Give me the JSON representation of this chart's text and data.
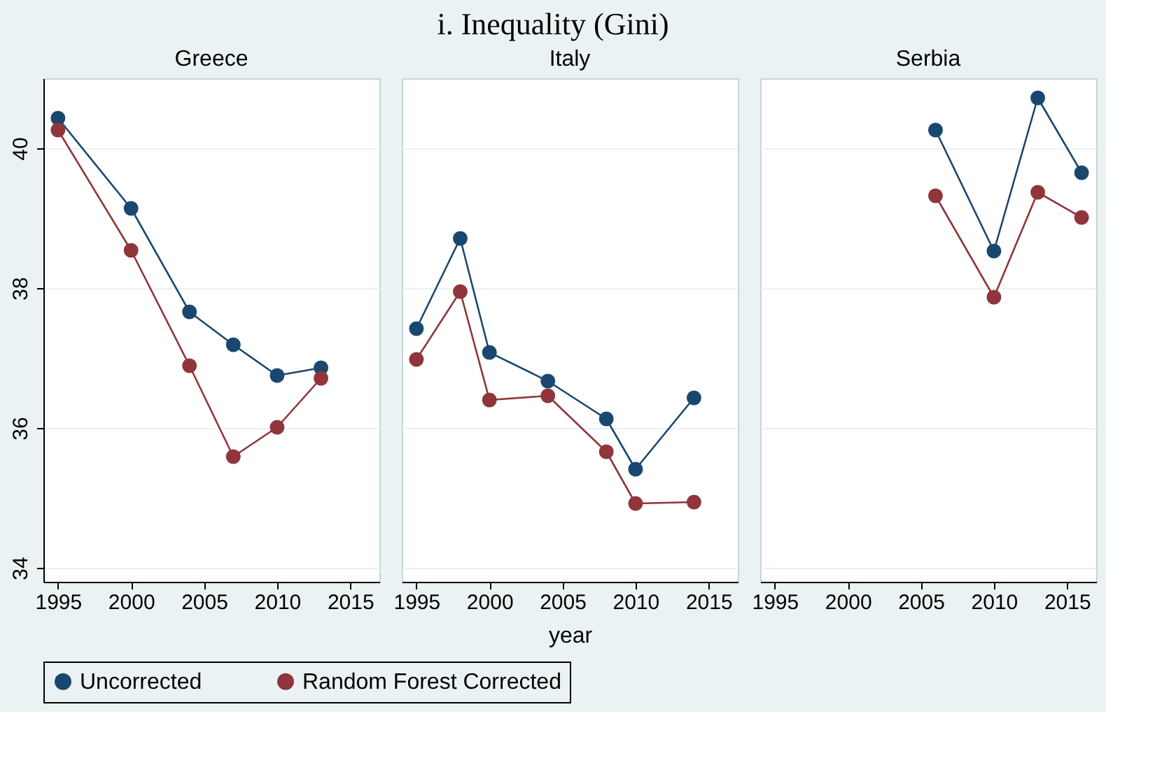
{
  "chart_data": [
    {
      "type": "line",
      "title": "Greece",
      "legend": "bottom",
      "annotations": [
        "i. Inequality (Gini)"
      ],
      "xlim": [
        1994,
        2017
      ],
      "xticks": [
        1995,
        2000,
        2005,
        2010,
        2015
      ],
      "ylim": [
        33.8,
        41
      ],
      "yticks": [
        34,
        36,
        38,
        40
      ],
      "grid": "y",
      "marker": "circle",
      "line_style": "solid",
      "series": [
        {
          "name": "Uncorrected",
          "color": "#1a476f",
          "x": [
            1995,
            2000,
            2004,
            2007,
            2010,
            2013
          ],
          "values": [
            40.43,
            39.14,
            37.66,
            37.19,
            36.75,
            36.86
          ]
        },
        {
          "name": "Random Forest Corrected",
          "color": "#90353b",
          "x": [
            1995,
            2000,
            2004,
            2007,
            2010,
            2013
          ],
          "values": [
            40.26,
            38.54,
            36.89,
            35.59,
            36.01,
            36.71
          ]
        }
      ]
    },
    {
      "type": "line",
      "title": "Italy",
      "xlabel": "year",
      "legend": "bottom",
      "tick_labels": "x",
      "xlim": [
        1994,
        2017
      ],
      "xticks": [
        1995,
        2000,
        2005,
        2010,
        2015
      ],
      "ylim": [
        33.8,
        41
      ],
      "yticks": [
        34,
        36,
        38,
        40
      ],
      "grid": "y",
      "marker": "circle",
      "line_style": "solid",
      "series": [
        {
          "name": "Uncorrected",
          "color": "#1a476f",
          "x": [
            1995,
            1998,
            2000,
            2004,
            2008,
            2010,
            2014
          ],
          "values": [
            37.42,
            38.71,
            37.08,
            36.67,
            36.13,
            35.41,
            36.43
          ]
        },
        {
          "name": "Random Forest Corrected",
          "color": "#90353b",
          "x": [
            1995,
            1998,
            2000,
            2004,
            2008,
            2010,
            2014
          ],
          "values": [
            36.98,
            37.95,
            36.4,
            36.46,
            35.66,
            34.92,
            34.94
          ]
        }
      ]
    },
    {
      "type": "line",
      "title": "Serbia",
      "legend": "bottom",
      "tick_labels": "x",
      "xlim": [
        1994,
        2017
      ],
      "xticks": [
        1995,
        2000,
        2005,
        2010,
        2015
      ],
      "ylim": [
        33.8,
        41
      ],
      "yticks": [
        34,
        36,
        38,
        40
      ],
      "grid": "y",
      "marker": "circle",
      "line_style": "solid",
      "series": [
        {
          "name": "Uncorrected",
          "color": "#1a476f",
          "x": [
            2006,
            2010,
            2013,
            2016
          ],
          "values": [
            40.26,
            38.53,
            40.72,
            39.65
          ]
        },
        {
          "name": "Random Forest Corrected",
          "color": "#90353b",
          "x": [
            2006,
            2010,
            2013,
            2016
          ],
          "values": [
            39.32,
            37.87,
            39.37,
            39.01
          ]
        }
      ]
    }
  ]
}
